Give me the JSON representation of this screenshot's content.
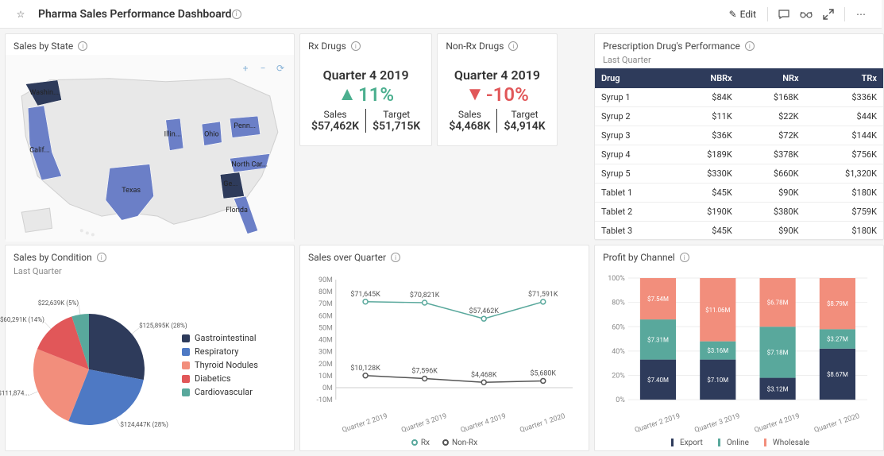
{
  "header": {
    "title": "Pharma Sales Performance Dashboard",
    "edit_label": "Edit"
  },
  "panels": {
    "sales_by_state": {
      "title": "Sales by State",
      "states": [
        "Washin...",
        "Calif...",
        "Texas",
        "Illin...",
        "Ohio",
        "Penn...",
        "North Car...",
        "Ge...",
        "Florida"
      ],
      "map_fill": "#e8e8e8",
      "state_fill": "#6b7fc7",
      "highlight_fill": "#2e3b5b"
    },
    "rx_drugs": {
      "title": "Rx Drugs",
      "period": "Quarter 4 2019",
      "change": "11%",
      "direction": "up",
      "sales_label": "Sales",
      "sales_value": "$57,462K",
      "target_label": "Target",
      "target_value": "$51,715K"
    },
    "nonrx_drugs": {
      "title": "Non-Rx Drugs",
      "period": "Quarter 4 2019",
      "change": "-10%",
      "direction": "down",
      "sales_label": "Sales",
      "sales_value": "$4,468K",
      "target_label": "Target",
      "target_value": "$4,914K"
    },
    "prescription_perf": {
      "title": "Prescription Drug's Performance",
      "subtitle": "Last Quarter",
      "columns": [
        "Drug",
        "NBRx",
        "NRx",
        "TRx"
      ],
      "rows": [
        [
          "Syrup 1",
          "$84K",
          "$168K",
          "$336K"
        ],
        [
          "Syrup 2",
          "$11K",
          "$22K",
          "$44K"
        ],
        [
          "Syrup 3",
          "$36K",
          "$72K",
          "$144K"
        ],
        [
          "Syrup 4",
          "$189K",
          "$378K",
          "$756K"
        ],
        [
          "Syrup 5",
          "$330K",
          "$660K",
          "$1,320K"
        ],
        [
          "Tablet 1",
          "$45K",
          "$90K",
          "$180K"
        ],
        [
          "Tablet 2",
          "$190K",
          "$380K",
          "$759K"
        ],
        [
          "Tablet 3",
          "$45K",
          "$90K",
          "$180K"
        ]
      ]
    },
    "sales_by_condition": {
      "title": "Sales by Condition",
      "subtitle": "Last Quarter",
      "slices": [
        {
          "label": "Gastrointestinal",
          "value": "$125,895K (28%)",
          "pct": 28,
          "color": "#2e3b5b"
        },
        {
          "label": "Respiratory",
          "value": "$124,447K (28%)",
          "pct": 28,
          "color": "#4e79c4"
        },
        {
          "label": "Thyroid Nodules",
          "value": "$111,874...",
          "pct": 25,
          "color": "#f28e7c"
        },
        {
          "label": "Diabetics",
          "value": "$60,291K (14%)",
          "pct": 14,
          "color": "#e15759"
        },
        {
          "label": "Cardiovascular",
          "value": "$22,639K (5%)",
          "pct": 5,
          "color": "#59a89c"
        }
      ]
    },
    "sales_over_quarter": {
      "title": "Sales over Quarter",
      "ylim": [
        -10,
        90
      ],
      "ytick_step": 10,
      "yunit": "M",
      "categories": [
        "Quarter 2 2019",
        "Quarter 3 2019",
        "Quarter 4 2019",
        "Quarter 1 2020"
      ],
      "series": [
        {
          "name": "Rx",
          "color": "#59a89c",
          "values": [
            71.645,
            70.821,
            57.462,
            71.591
          ],
          "labels": [
            "$71,645K",
            "$70,821K",
            "$57,462K",
            "$71,591K"
          ]
        },
        {
          "name": "Non-Rx",
          "color": "#555555",
          "values": [
            10.128,
            7.596,
            4.468,
            5.68
          ],
          "labels": [
            "$10,128K",
            "$7,596K",
            "$4,468K",
            "$5,680K"
          ]
        }
      ]
    },
    "profit_by_channel": {
      "title": "Profit by Channel",
      "ylim": [
        0,
        100
      ],
      "ytick_step": 20,
      "yunit": "%",
      "categories": [
        "Quarter 2 2019",
        "Quarter 3 2019",
        "Quarter 4 2019",
        "Quarter 1 2020"
      ],
      "series": [
        {
          "name": "Export",
          "color": "#2e3b5b",
          "values": [
            33,
            33,
            18,
            42
          ],
          "labels": [
            "$7.40M",
            "$7.10M",
            "$3.12M",
            "$8.67M"
          ]
        },
        {
          "name": "Online",
          "color": "#59a89c",
          "values": [
            33,
            15,
            42,
            16
          ],
          "labels": [
            "$7.31M",
            "$3.16M",
            "$7.18M",
            "$3.27M"
          ]
        },
        {
          "name": "Wholesale",
          "color": "#f28e7c",
          "values": [
            34,
            52,
            40,
            42
          ],
          "labels": [
            "$7.54M",
            "$11.06M",
            "$6.78M",
            "$8.79M"
          ]
        }
      ]
    }
  },
  "colors": {
    "background": "#f5f5f5",
    "panel_bg": "#ffffff",
    "border": "#e5e5e5",
    "grid": "#e8e8e8"
  }
}
